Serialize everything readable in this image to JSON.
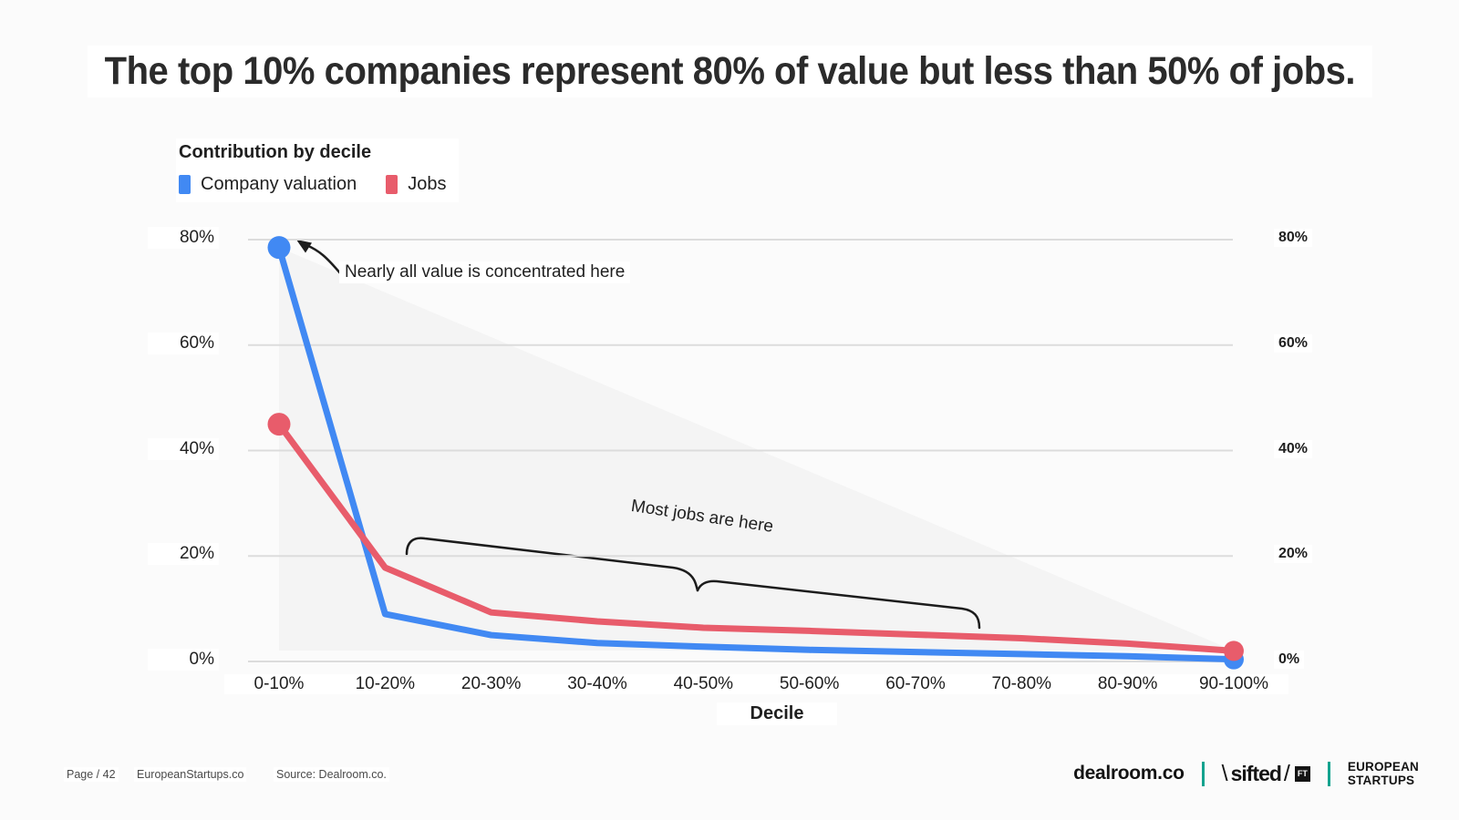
{
  "title": "The top 10% companies represent 80% of value but less than 50% of jobs.",
  "legend": {
    "heading": "Contribution by decile",
    "items": [
      {
        "label": "Company valuation",
        "color": "#4189f3"
      },
      {
        "label": "Jobs",
        "color": "#e85c6b"
      }
    ]
  },
  "annotations": {
    "value_note": "Nearly all value is concentrated here",
    "jobs_note": "Most jobs are here"
  },
  "chart_data": {
    "type": "line",
    "categories": [
      "0-10%",
      "10-20%",
      "20-30%",
      "30-40%",
      "40-50%",
      "50-60%",
      "60-70%",
      "70-80%",
      "80-90%",
      "90-100%"
    ],
    "series": [
      {
        "name": "Company valuation",
        "color": "#4189f3",
        "values": [
          78.5,
          9.0,
          5.0,
          3.5,
          2.8,
          2.2,
          1.8,
          1.4,
          1.0,
          0.4
        ]
      },
      {
        "name": "Jobs",
        "color": "#e85c6b",
        "values": [
          45.0,
          17.8,
          9.3,
          7.6,
          6.4,
          5.8,
          5.1,
          4.4,
          3.4,
          2.0
        ]
      }
    ],
    "xlabel": "Decile",
    "y_ticks_left": [
      "80%",
      "60%",
      "40%",
      "20%",
      "0%"
    ],
    "y_ticks_right": [
      "80%",
      "60%",
      "40%",
      "20%",
      "0%"
    ],
    "ylim": [
      0,
      80
    ],
    "grid": true,
    "gridline_color": "#dcdcdc",
    "legend_position": "top-left"
  },
  "footer": {
    "page_label": "Page / 42",
    "site": "EuropeanStartups.co",
    "source": "Source: Dealroom.co.",
    "divider_color": "#14a38f",
    "brands": {
      "dealroom": "dealroom.co",
      "sifted_pre": "\\",
      "sifted": "sifted",
      "sifted_post": "/",
      "ft_badge": "FT",
      "european": "EUROPEAN",
      "startups": "STARTUPS"
    }
  }
}
